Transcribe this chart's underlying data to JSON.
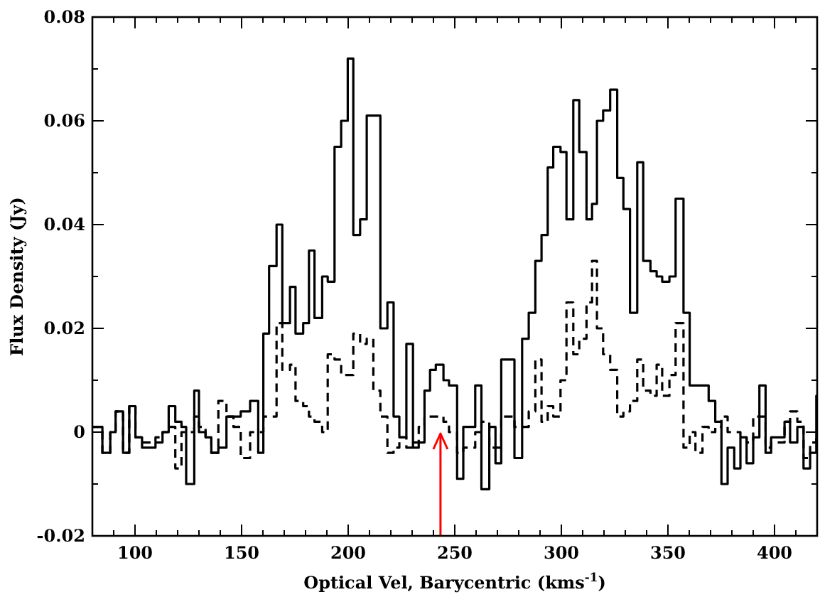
{
  "chart_data": {
    "type": "step",
    "xlabel": "Optical Vel, Barycentric (kms$^{-1}$)",
    "ylabel": "Flux Density (Jy)",
    "xlim": [
      80,
      420
    ],
    "ylim": [
      -0.02,
      0.08
    ],
    "xticks": [
      {
        "value": 80,
        "label": null
      },
      {
        "value": 90,
        "label": null
      },
      100,
      {
        "value": 110,
        "label": null
      },
      {
        "value": 120,
        "label": null
      },
      {
        "value": 130,
        "label": null
      },
      {
        "value": 140,
        "label": null
      },
      150,
      {
        "value": 160,
        "label": null
      },
      {
        "value": 170,
        "label": null
      },
      {
        "value": 180,
        "label": null
      },
      {
        "value": 190,
        "label": null
      },
      200,
      {
        "value": 210,
        "label": null
      },
      {
        "value": 220,
        "label": null
      },
      {
        "value": 230,
        "label": null
      },
      {
        "value": 240,
        "label": null
      },
      250,
      {
        "value": 260,
        "label": null
      },
      {
        "value": 270,
        "label": null
      },
      {
        "value": 280,
        "label": null
      },
      {
        "value": 290,
        "label": null
      },
      300,
      {
        "value": 310,
        "label": null
      },
      {
        "value": 320,
        "label": null
      },
      {
        "value": 330,
        "label": null
      },
      {
        "value": 340,
        "label": null
      },
      350,
      {
        "value": 360,
        "label": null
      },
      {
        "value": 370,
        "label": null
      },
      {
        "value": 380,
        "label": null
      },
      {
        "value": 390,
        "label": null
      },
      400,
      {
        "value": 410,
        "label": null
      }
    ],
    "yticks": [
      -0.02,
      {
        "value": -0.01,
        "label": null
      },
      0,
      {
        "value": 0.01,
        "label": null
      },
      0.02,
      {
        "value": 0.03,
        "label": null
      },
      0.04,
      {
        "value": 0.05,
        "label": null
      },
      0.06,
      {
        "value": 0.07,
        "label": null
      },
      0.08
    ],
    "grid": false,
    "x": [
      80,
      84.7,
      88.4,
      90.9,
      94.4,
      97.3,
      100.2,
      103.3,
      109.6,
      112.9,
      115.8,
      118.9,
      121.8,
      124,
      127.8,
      130,
      133.1,
      135.8,
      139.1,
      142.9,
      146.2,
      149.6,
      154,
      157.8,
      160.2,
      162.9,
      166.4,
      169.1,
      172.7,
      175.3,
      178.9,
      181.6,
      184.2,
      187.8,
      190.4,
      193.6,
      196.7,
      199.8,
      202.4,
      205.6,
      208.7,
      211.8,
      215.1,
      218.4,
      221.3,
      224,
      227.3,
      230.4,
      233.1,
      235.8,
      238.4,
      241.1,
      244.7,
      247.3,
      251.1,
      254,
      259.6,
      262.5,
      266.2,
      269.1,
      271.8,
      278,
      281.6,
      284.7,
      287.8,
      290.7,
      293.6,
      296.2,
      299.6,
      302.4,
      305.6,
      308.4,
      311.8,
      314.4,
      316.7,
      319.6,
      322.9,
      326.2,
      329.1,
      332.2,
      335.6,
      338.4,
      341.8,
      344.7,
      347.3,
      350.7,
      353.6,
      357.3,
      360.2,
      362.9,
      366.2,
      369.1,
      372.2,
      375.1,
      378,
      381.1,
      384,
      386.9,
      390,
      392.9,
      395.8,
      398.4,
      401.8,
      404.7,
      407.3,
      410.7,
      413.6,
      416.7,
      419.6
    ],
    "series": [
      {
        "color": "#000000",
        "line_style": "solid",
        "values": [
          0.001,
          -0.004,
          0,
          0.004,
          -0.004,
          0.005,
          -0.001,
          -0.003,
          -0.002,
          0,
          0.005,
          0.002,
          0.001,
          -0.01,
          0.008,
          0,
          -0.001,
          -0.004,
          -0.003,
          0.003,
          0.003,
          0.004,
          0.006,
          -0.004,
          0.019,
          0.032,
          0.04,
          0.021,
          0.028,
          0.019,
          0.021,
          0.035,
          0.022,
          0.03,
          0.029,
          0.055,
          0.06,
          0.072,
          0.038,
          0.041,
          0.061,
          0.061,
          0.02,
          0.025,
          0.003,
          -0.001,
          0.017,
          -0.003,
          -0.002,
          0.008,
          0.012,
          0.013,
          0.01,
          0.009,
          -0.009,
          0.001,
          0.009,
          -0.011,
          0.001,
          -0.006,
          0.014,
          -0.005,
          0.018,
          0.023,
          0.033,
          0.038,
          0.051,
          0.055,
          0.054,
          0.041,
          0.064,
          0.054,
          0.041,
          0.044,
          0.06,
          0.062,
          0.066,
          0.049,
          0.043,
          0.023,
          0.052,
          0.033,
          0.031,
          0.03,
          0.029,
          0.03,
          0.045,
          0.023,
          0.009,
          0.009,
          0.009,
          0.006,
          0.002,
          -0.01,
          -0.003,
          -0.007,
          -0.001,
          -0.006,
          -0.001,
          0.009,
          -0.004,
          -0.001,
          -0.001,
          0.002,
          -0.002,
          0.001,
          -0.007,
          -0.004,
          0.007
        ]
      },
      {
        "color": "#000000",
        "line_style": "dashed",
        "values": [
          0.001,
          -0.004,
          0,
          0.004,
          -0.004,
          0.005,
          -0.001,
          -0.002,
          -0.001,
          0,
          0.001,
          -0.007,
          0,
          0,
          0.003,
          0.001,
          -0.001,
          -0.004,
          0.006,
          0.003,
          0.001,
          -0.005,
          0,
          0,
          0.003,
          0.003,
          0.021,
          0.012,
          0.013,
          0.006,
          0.005,
          0.003,
          0.002,
          0,
          0.015,
          0.014,
          0.011,
          0.011,
          0.019,
          0.017,
          0.018,
          0.008,
          0.003,
          -0.004,
          -0.003,
          -0.001,
          -0.003,
          -0.002,
          0.001,
          0.003,
          0.003,
          0.003,
          0.002,
          0,
          -0.004,
          -0.003,
          0,
          0.002,
          -0.003,
          -0.003,
          0.003,
          0.001,
          0.001,
          0.004,
          0.014,
          0.002,
          0.005,
          0.003,
          0.01,
          0.025,
          0.015,
          0.018,
          0.025,
          0.033,
          0.02,
          0.015,
          0.012,
          0.003,
          0.004,
          0.006,
          0.014,
          0.008,
          0.007,
          0.013,
          0.007,
          0.011,
          0.021,
          -0.003,
          0,
          -0.004,
          0.001,
          0,
          0.001,
          0.003,
          0,
          0,
          -0.001,
          -0.002,
          0.003,
          0.003,
          -0.003,
          -0.002,
          -0.002,
          0.002,
          0.004,
          0.002,
          -0.005,
          -0.002,
          -0.001
        ]
      }
    ],
    "ref_lines": [
      {
        "axis": "x",
        "value": 243.3,
        "color": "#ff0000"
      }
    ]
  }
}
